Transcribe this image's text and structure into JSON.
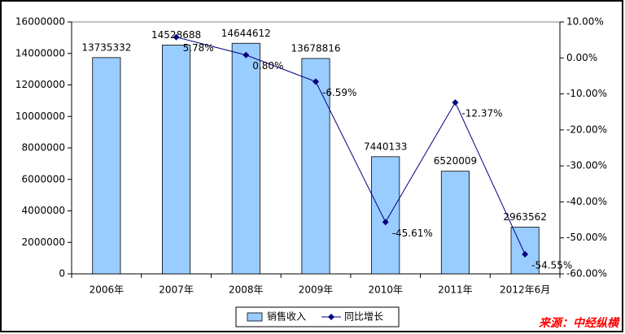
{
  "chart_data": {
    "type": "bar-line",
    "categories": [
      "2006年",
      "2007年",
      "2008年",
      "2009年",
      "2010年",
      "2011年",
      "2012年6月"
    ],
    "series": [
      {
        "name": "销售收入",
        "color": "#99ccff",
        "values": [
          13735332,
          14528688,
          14644612,
          13678816,
          7440133,
          6520009,
          2963562
        ]
      },
      {
        "name": "同比增长",
        "color": "#000080",
        "axis": "y2",
        "values": [
          null,
          5.78,
          0.8,
          -6.59,
          -45.61,
          -12.37,
          -54.55
        ],
        "value_labels": [
          null,
          "5.78%",
          "0.80%",
          "-6.59%",
          "-45.61%",
          "-12.37%",
          "-54.55%"
        ]
      }
    ],
    "ylim": [
      0,
      16000000
    ],
    "yticks": [
      0,
      2000000,
      4000000,
      6000000,
      8000000,
      10000000,
      12000000,
      14000000,
      16000000
    ],
    "y2lim": [
      -60,
      10
    ],
    "y2ticks": [
      {
        "value": -60,
        "label": "-60.00%"
      },
      {
        "value": -50,
        "label": "-50.00%"
      },
      {
        "value": -40,
        "label": "-40.00%"
      },
      {
        "value": -30,
        "label": "-30.00%"
      },
      {
        "value": -20,
        "label": "-20.00%"
      },
      {
        "value": -10,
        "label": "-10.00%"
      },
      {
        "value": 0,
        "label": "0.00%"
      },
      {
        "value": 10,
        "label": "10.00%"
      }
    ],
    "legend": "bottom",
    "source": "来源：中经纵横"
  }
}
